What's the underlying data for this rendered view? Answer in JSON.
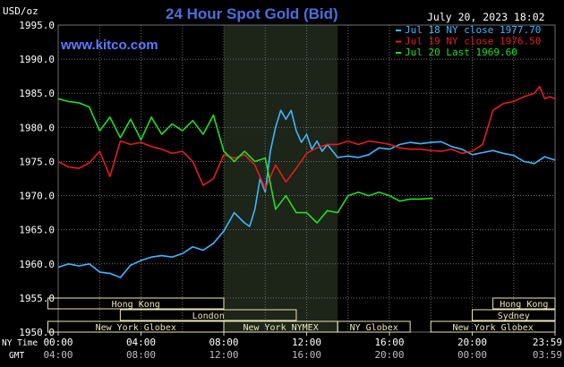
{
  "header": {
    "units": "USD/oz",
    "title": "24 Hour Spot Gold (Bid)",
    "timestamp": "July 20, 2023 18:02",
    "watermark": "www.kitco.com"
  },
  "colors": {
    "background": "#000000",
    "grid": "#6e6e6e",
    "title": "#4a6fe0",
    "watermark": "#5a7cff",
    "axis_text": "#ffffff",
    "session_bar": "#ece6b8",
    "session_highlight": "#1d2418"
  },
  "sessions": {
    "row1": [
      {
        "label": "Hong Kong",
        "from": -0.5,
        "to": 8
      },
      {
        "label": "Hong Kong",
        "from": 21,
        "to": 24
      }
    ],
    "row2": [
      {
        "label": "London",
        "from": 3,
        "to": 11.5
      },
      {
        "label": "Sydney",
        "from": 20,
        "to": 24
      }
    ],
    "row3": [
      {
        "label": "New York Globex",
        "from": -0.5,
        "to": 8
      },
      {
        "label": "New York NYMEX",
        "from": 8,
        "to": 13.5
      },
      {
        "label": "NY Globex",
        "from": 13.5,
        "to": 17
      },
      {
        "label": "New York Globex",
        "from": 18,
        "to": 24
      }
    ]
  },
  "time_axis": {
    "ny_label": "NY Time",
    "gmt_label": "GMT",
    "ny_ticks": [
      "00:00",
      "04:00",
      "08:00",
      "12:00",
      "16:00",
      "20:00",
      "23:59"
    ],
    "gmt_ticks": [
      "04:00",
      "08:00",
      "12:00",
      "16:00",
      "20:00",
      "00:00",
      "03:59"
    ]
  },
  "chart_data": {
    "type": "line",
    "title": "24 Hour Spot Gold (Bid)",
    "ylabel": "USD/oz",
    "xlabel": "NY Time",
    "ylim": [
      1950,
      1995
    ],
    "xlim": [
      0,
      24
    ],
    "yticks": [
      "1950.0",
      "1955.0",
      "1960.0",
      "1965.0",
      "1970.0",
      "1975.0",
      "1980.0",
      "1985.0",
      "1990.0",
      "1995.0"
    ],
    "grid": true,
    "legend_position": "top-right",
    "highlight_range": [
      8,
      13.5
    ],
    "series": [
      {
        "name": "Jul 18 NY close 1977.70",
        "color": "#3cb8ff",
        "x": [
          0,
          0.5,
          1,
          1.5,
          2,
          2.5,
          3,
          3.5,
          4,
          4.5,
          5,
          5.5,
          6,
          6.5,
          7,
          7.5,
          8,
          8.5,
          9,
          9.25,
          9.5,
          9.75,
          10,
          10.25,
          10.5,
          10.75,
          11,
          11.25,
          11.5,
          11.75,
          12,
          12.25,
          12.5,
          12.75,
          13,
          13.5,
          14,
          14.5,
          15,
          15.5,
          16,
          16.5,
          17,
          17.5,
          18,
          18.5,
          19,
          19.5,
          20,
          20.5,
          21,
          21.5,
          22,
          22.5,
          23,
          23.5,
          24
        ],
        "values": [
          1959.5,
          1960.0,
          1959.7,
          1960.0,
          1958.8,
          1958.6,
          1958.0,
          1959.8,
          1960.5,
          1961.0,
          1961.2,
          1961.0,
          1961.5,
          1962.5,
          1962.0,
          1963.0,
          1964.8,
          1967.5,
          1966.0,
          1965.5,
          1968.0,
          1972.5,
          1970.5,
          1976.5,
          1980.0,
          1982.5,
          1981.2,
          1982.5,
          1979.5,
          1977.8,
          1979.0,
          1976.8,
          1978.0,
          1976.5,
          1977.5,
          1975.6,
          1975.8,
          1975.6,
          1976.0,
          1977.0,
          1976.8,
          1977.5,
          1977.8,
          1977.6,
          1977.8,
          1977.9,
          1977.2,
          1976.8,
          1976.0,
          1976.3,
          1976.6,
          1976.2,
          1975.9,
          1975.0,
          1974.7,
          1975.7,
          1975.2
        ]
      },
      {
        "name": "Jul 19 NY close 1976.50",
        "color": "#e41d1d",
        "x": [
          0,
          0.5,
          1,
          1.5,
          2,
          2.5,
          3,
          3.5,
          4,
          4.5,
          5,
          5.5,
          6,
          6.5,
          7,
          7.5,
          8,
          8.5,
          9,
          9.5,
          10,
          10.5,
          11,
          11.5,
          12,
          12.5,
          13,
          13.5,
          14,
          14.5,
          15,
          15.5,
          16,
          16.5,
          17,
          17.5,
          18,
          18.5,
          19,
          19.5,
          20,
          20.5,
          21,
          21.5,
          22,
          22.5,
          23,
          23.25,
          23.5,
          23.75,
          24
        ],
        "values": [
          1975.0,
          1974.2,
          1974.0,
          1974.8,
          1976.5,
          1972.8,
          1978.0,
          1977.5,
          1977.8,
          1977.2,
          1976.8,
          1976.2,
          1976.5,
          1975.0,
          1971.5,
          1972.5,
          1976.0,
          1975.5,
          1976.0,
          1974.5,
          1971.0,
          1974.5,
          1972.0,
          1974.0,
          1976.2,
          1977.0,
          1977.5,
          1977.5,
          1978.0,
          1977.5,
          1978.0,
          1977.8,
          1977.5,
          1977.0,
          1976.8,
          1976.8,
          1976.6,
          1976.5,
          1976.8,
          1976.2,
          1976.5,
          1977.5,
          1982.5,
          1983.5,
          1983.8,
          1984.5,
          1985.0,
          1986.0,
          1984.2,
          1984.5,
          1984.2
        ]
      },
      {
        "name": "Jul 20 Last 1969.60",
        "color": "#1ee01e",
        "x": [
          0,
          0.5,
          1,
          1.5,
          2,
          2.5,
          3,
          3.5,
          4,
          4.5,
          5,
          5.5,
          6,
          6.5,
          7,
          7.5,
          8,
          8.5,
          9,
          9.5,
          10,
          10.5,
          11,
          11.5,
          12,
          12.5,
          13,
          13.5,
          14,
          14.5,
          15,
          15.5,
          16,
          16.5,
          17,
          17.5,
          18,
          18.1
        ],
        "values": [
          1984.2,
          1983.8,
          1983.6,
          1983.0,
          1979.5,
          1981.5,
          1978.5,
          1981.2,
          1978.2,
          1981.5,
          1979.0,
          1980.5,
          1979.5,
          1981.0,
          1979.0,
          1981.8,
          1976.5,
          1975.0,
          1976.5,
          1975.0,
          1975.5,
          1968.0,
          1970.0,
          1967.5,
          1967.5,
          1966.0,
          1967.8,
          1967.5,
          1970.0,
          1970.5,
          1970.0,
          1970.5,
          1970.0,
          1969.2,
          1969.5,
          1969.5,
          1969.6,
          1969.6
        ]
      }
    ]
  }
}
